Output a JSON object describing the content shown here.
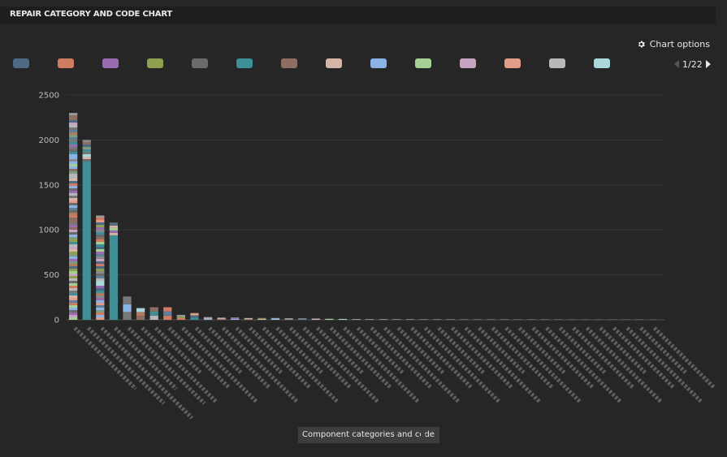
{
  "header": {
    "title": "REPAIR CATEGORY AND CODE CHART"
  },
  "toolbar": {
    "chart_options_label": "Chart options",
    "gear_icon": "gear-icon"
  },
  "legend": {
    "swatches": [
      "#4e6a85",
      "#d07c62",
      "#9a6bb0",
      "#8ea04f",
      "#6a6a6a",
      "#3f8f97",
      "#8e6e62",
      "#d4b5a8",
      "#8cb3e6",
      "#a6cf93",
      "#c6a5c2",
      "#e09e86",
      "#b8b8b8",
      "#a8d7dc"
    ],
    "page": "1/22"
  },
  "xaxis": {
    "title": "Component categories and code"
  },
  "chart_data": {
    "type": "bar",
    "stacked": true,
    "title": "REPAIR CATEGORY AND CODE CHART",
    "xlabel": "Component categories and code",
    "ylabel": "",
    "ylim": [
      0,
      2500
    ],
    "yticks": [
      0,
      500,
      1000,
      1500,
      2000,
      2500
    ],
    "grid": true,
    "legend_position": "top",
    "totals": [
      2300,
      2000,
      1160,
      1080,
      260,
      130,
      140,
      140,
      55,
      75,
      30,
      25,
      25,
      20,
      20,
      20,
      18,
      16,
      15,
      12,
      10,
      9,
      8,
      8,
      7,
      7,
      6,
      6,
      6,
      5,
      5,
      5,
      5,
      4,
      4,
      4,
      4,
      3,
      3,
      3,
      3,
      3,
      3,
      2
    ]
  }
}
